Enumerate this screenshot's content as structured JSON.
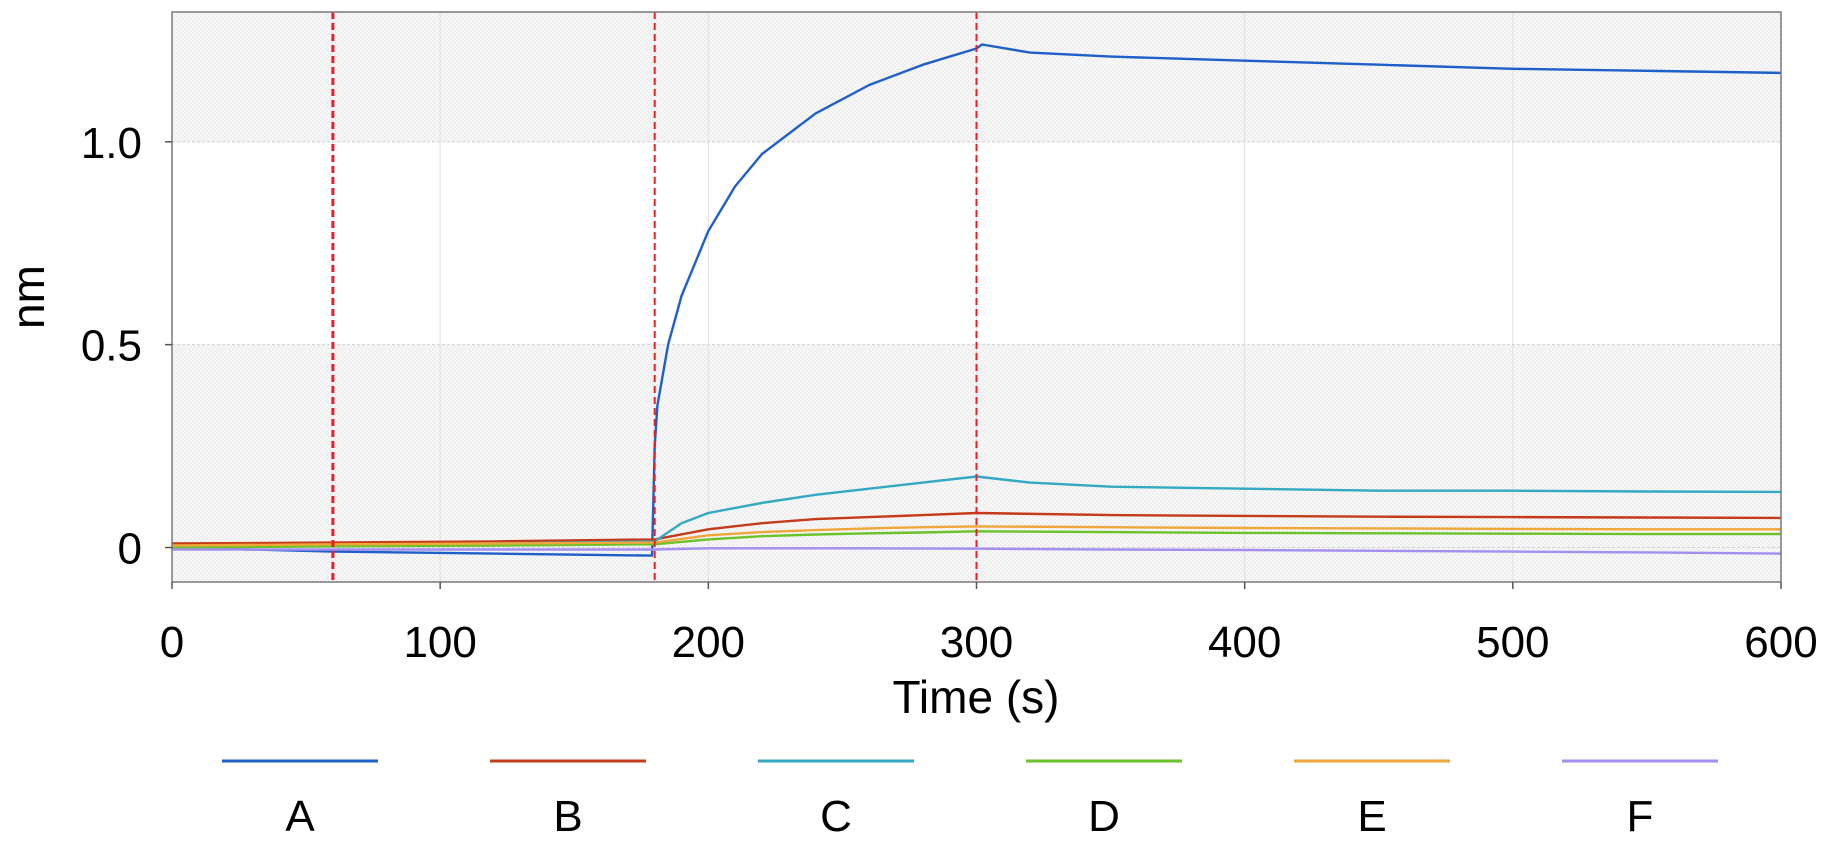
{
  "chart_data": {
    "type": "line",
    "title": "",
    "xlabel": "Time (s)",
    "ylabel": "nm",
    "xlim": [
      0,
      600
    ],
    "ylim": [
      -0.085,
      1.32
    ],
    "x_ticks": [
      0,
      100,
      200,
      300,
      400,
      500,
      600
    ],
    "x_tick_labels": [
      "0",
      "100",
      "200",
      "300",
      "400",
      "500",
      "600"
    ],
    "y_ticks": [
      0,
      0.5,
      1.0
    ],
    "y_tick_labels": [
      "0",
      "0.5",
      "1.0"
    ],
    "grid": true,
    "legend_position": "bottom",
    "phase_markers": [
      60,
      180,
      300
    ],
    "marker_color": "#e8202a",
    "series": [
      {
        "name": "A",
        "color": "#1f5fc8",
        "x": [
          0,
          60,
          120,
          179,
          180,
          181,
          185,
          190,
          200,
          210,
          220,
          240,
          260,
          280,
          300,
          302,
          320,
          350,
          400,
          450,
          500,
          550,
          600
        ],
        "y": [
          0.0,
          -0.01,
          -0.015,
          -0.02,
          0.25,
          0.35,
          0.5,
          0.62,
          0.78,
          0.89,
          0.97,
          1.07,
          1.14,
          1.19,
          1.23,
          1.24,
          1.22,
          1.21,
          1.2,
          1.19,
          1.18,
          1.175,
          1.17
        ]
      },
      {
        "name": "B",
        "color": "#c43a1a",
        "x": [
          0,
          60,
          120,
          180,
          200,
          220,
          240,
          260,
          280,
          300,
          350,
          400,
          450,
          500,
          550,
          600
        ],
        "y": [
          0.01,
          0.012,
          0.015,
          0.02,
          0.045,
          0.06,
          0.07,
          0.075,
          0.08,
          0.085,
          0.08,
          0.078,
          0.076,
          0.075,
          0.074,
          0.073
        ]
      },
      {
        "name": "C",
        "color": "#33a9c2",
        "x": [
          0,
          60,
          120,
          180,
          190,
          200,
          220,
          240,
          260,
          280,
          300,
          320,
          350,
          400,
          450,
          500,
          550,
          600
        ],
        "y": [
          0.0,
          0.005,
          0.01,
          0.015,
          0.06,
          0.085,
          0.11,
          0.13,
          0.145,
          0.16,
          0.175,
          0.16,
          0.15,
          0.145,
          0.14,
          0.14,
          0.138,
          0.137
        ]
      },
      {
        "name": "D",
        "color": "#6cc22a",
        "x": [
          0,
          60,
          120,
          180,
          200,
          220,
          240,
          260,
          280,
          300,
          350,
          400,
          450,
          500,
          550,
          600
        ],
        "y": [
          0.0,
          0.003,
          0.005,
          0.008,
          0.02,
          0.028,
          0.032,
          0.035,
          0.037,
          0.04,
          0.038,
          0.036,
          0.035,
          0.034,
          0.033,
          0.033
        ]
      },
      {
        "name": "E",
        "color": "#f0a63a",
        "x": [
          0,
          60,
          120,
          180,
          200,
          220,
          240,
          260,
          280,
          300,
          350,
          400,
          450,
          500,
          550,
          600
        ],
        "y": [
          0.005,
          0.008,
          0.01,
          0.012,
          0.03,
          0.038,
          0.043,
          0.047,
          0.05,
          0.052,
          0.05,
          0.048,
          0.047,
          0.046,
          0.045,
          0.045
        ]
      },
      {
        "name": "F",
        "color": "#a48ff0",
        "x": [
          0,
          60,
          120,
          180,
          200,
          250,
          300,
          350,
          400,
          450,
          500,
          550,
          600
        ],
        "y": [
          -0.005,
          -0.005,
          -0.005,
          -0.005,
          -0.002,
          -0.002,
          -0.003,
          -0.005,
          -0.006,
          -0.008,
          -0.01,
          -0.012,
          -0.015
        ]
      }
    ]
  }
}
